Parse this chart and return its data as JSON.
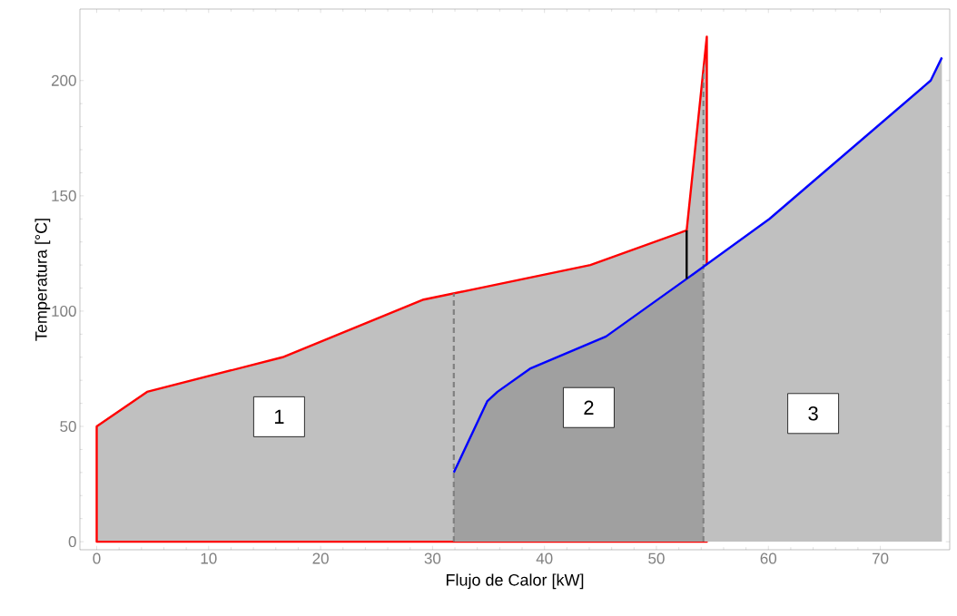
{
  "chart_data": {
    "type": "line",
    "xlabel": "Flujo de Calor  [kW]",
    "ylabel": "Temperatura  [°C]",
    "xlim": [
      -1.5,
      76.2
    ],
    "ylim": [
      -3.5,
      231
    ],
    "xticks": [
      0,
      10,
      20,
      30,
      40,
      50,
      60,
      70
    ],
    "yticks": [
      0,
      50,
      100,
      150,
      200
    ],
    "grid": false,
    "series": [
      {
        "type": "area",
        "color": "#ff0000",
        "x": [
          0,
          4.5,
          16.6,
          29.2,
          33.2,
          44.1,
          52.7,
          54.5
        ],
        "values": [
          50,
          65,
          80,
          105,
          109,
          120,
          135,
          219
        ]
      },
      {
        "type": "area",
        "color": "#c0c0c0",
        "x": [
          54.2,
          60.1,
          74.5,
          75.5
        ],
        "values": [
          119,
          140,
          200,
          210
        ]
      },
      {
        "type": "area",
        "color": "#a0a0a0",
        "x": [
          31.9,
          34.9,
          35.8,
          38.7,
          45.5,
          52.7,
          54.2
        ],
        "values": [
          30,
          61,
          65,
          75,
          89,
          114,
          119
        ]
      },
      {
        "color": "#0000ff",
        "x": [
          31.9,
          34.9,
          35.8,
          38.7,
          45.5,
          52.7,
          60.1,
          74.5,
          75.5
        ],
        "values": [
          30,
          61,
          65,
          75,
          89,
          114,
          140,
          200,
          210
        ]
      },
      {
        "color": "#000000",
        "x": [
          52.7,
          52.7
        ],
        "values": [
          114,
          135
        ]
      }
    ],
    "ref_lines": [
      {
        "axis": "x",
        "value": 31.9,
        "color": "#808080",
        "line_style": "dashed"
      },
      {
        "axis": "x",
        "value": 54.2,
        "color": "#808080",
        "line_style": "dashed"
      }
    ],
    "annotations": [
      "1",
      "2",
      "3"
    ]
  }
}
